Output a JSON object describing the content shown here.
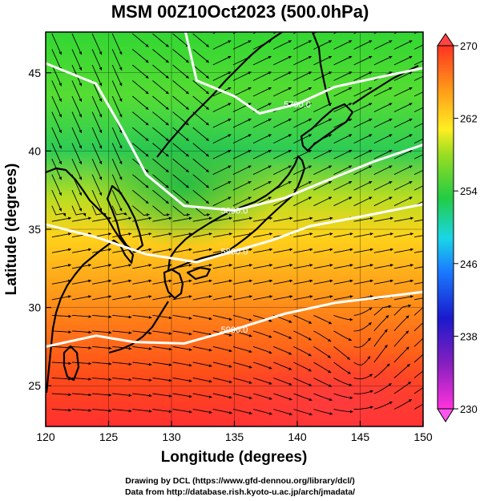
{
  "title": "MSM 00Z10Oct2023 (500.0hPa)",
  "footer": {
    "line1": "Drawing by DCL (https://www.gfd-dennou.org/library/dcl/)",
    "line2": "Data from http://database.rish.kyoto-u.ac.jp/arch/jmadata/"
  },
  "chart_data": {
    "type": "heatmap",
    "xlabel": "Longitude (degrees)",
    "ylabel": "Latitude  (degrees)",
    "xlim": [
      120,
      150
    ],
    "ylim": [
      22.4,
      47.6
    ],
    "xticks": [
      120,
      125,
      130,
      135,
      140,
      145,
      150
    ],
    "yticks": [
      25,
      30,
      35,
      40,
      45
    ],
    "colorbar": {
      "min": 230,
      "max": 270,
      "ticks": [
        230,
        238,
        246,
        254,
        262,
        270
      ]
    },
    "contours": [
      {
        "label": "5800.0",
        "points": [
          [
            120,
            45.6
          ],
          [
            124,
            44.3
          ],
          [
            126,
            41.5
          ],
          [
            128,
            38.5
          ],
          [
            131,
            36.5
          ],
          [
            135,
            36.2
          ],
          [
            139,
            37.0
          ],
          [
            142,
            38.0
          ],
          [
            146,
            39.3
          ],
          [
            150,
            40.4
          ]
        ]
      },
      {
        "label": "5700.0",
        "points": [
          [
            131,
            48.0
          ],
          [
            132,
            44.5
          ],
          [
            135,
            43.5
          ],
          [
            137,
            42.4
          ],
          [
            140,
            43.0
          ],
          [
            143,
            44.1
          ],
          [
            147,
            44.8
          ],
          [
            150,
            45.3
          ]
        ]
      },
      {
        "label": "5800.0",
        "points": [
          [
            120,
            35.3
          ],
          [
            124,
            34.5
          ],
          [
            128,
            33.4
          ],
          [
            132,
            32.9
          ],
          [
            135,
            33.6
          ],
          [
            138,
            34.3
          ],
          [
            141,
            35.2
          ],
          [
            145,
            35.8
          ],
          [
            150,
            36.6
          ]
        ]
      },
      {
        "label": "5900.0",
        "points": [
          [
            120,
            27.5
          ],
          [
            124,
            28.2
          ],
          [
            127,
            27.8
          ],
          [
            131,
            27.7
          ],
          [
            135,
            28.6
          ],
          [
            139,
            29.6
          ],
          [
            143,
            30.3
          ],
          [
            147,
            30.7
          ],
          [
            150,
            31.0
          ]
        ]
      }
    ]
  }
}
